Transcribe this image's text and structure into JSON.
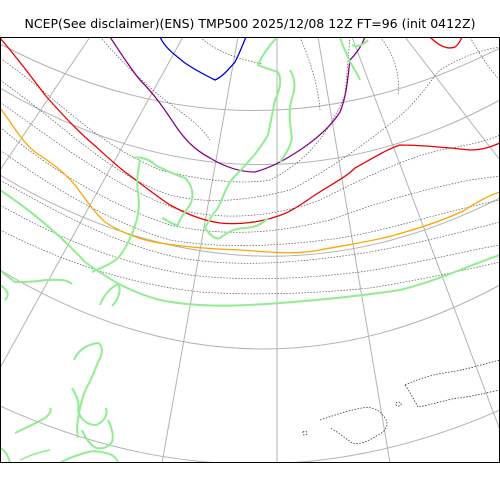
{
  "title": "NCEP(See disclaimer)(ENS) TMP500 2025/12/08 12Z FT=96 (init 0412Z)",
  "map": {
    "field": "TMP500",
    "contour_colors": {
      "gridlines": "#b3b3b3",
      "isotherms_gray": "#555555",
      "coastline_green": "#90ee90",
      "coastline_dotted": "#333333",
      "blue": "#0000dd",
      "purple": "#880088",
      "red": "#ee0000",
      "orange": "#ffa500"
    }
  }
}
